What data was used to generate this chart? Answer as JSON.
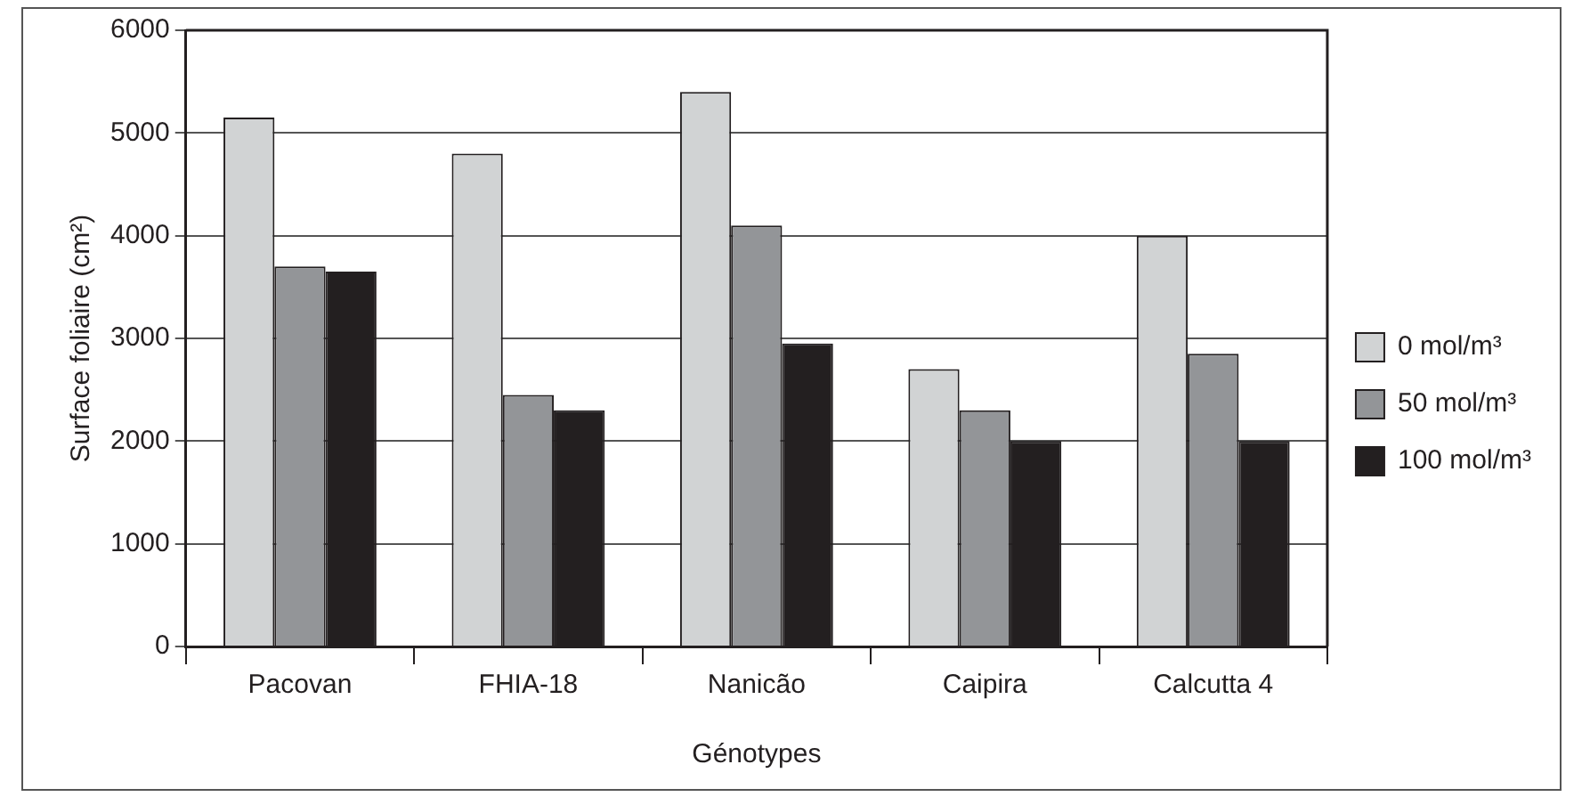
{
  "chart_data": {
    "type": "bar",
    "xlabel": "Génotypes",
    "ylabel": "Surface foliaire (cm²)",
    "categories": [
      "Pacovan",
      "FHIA-18",
      "Nanicão",
      "Caipira",
      "Calcutta 4"
    ],
    "series": [
      {
        "name": "0 mol/m³",
        "color": "#d1d3d4",
        "values": [
          5150,
          4800,
          5400,
          2700,
          4000
        ]
      },
      {
        "name": "50 mol/m³",
        "color": "#939598",
        "values": [
          3700,
          2450,
          4100,
          2300,
          2850
        ]
      },
      {
        "name": "100 mol/m³",
        "color": "#231f20",
        "values": [
          3650,
          2300,
          2950,
          2000,
          2000
        ]
      }
    ],
    "ylim": [
      0,
      6000
    ],
    "yticks": [
      0,
      1000,
      2000,
      3000,
      4000,
      5000,
      6000
    ],
    "grid": "y",
    "legend": "right"
  }
}
